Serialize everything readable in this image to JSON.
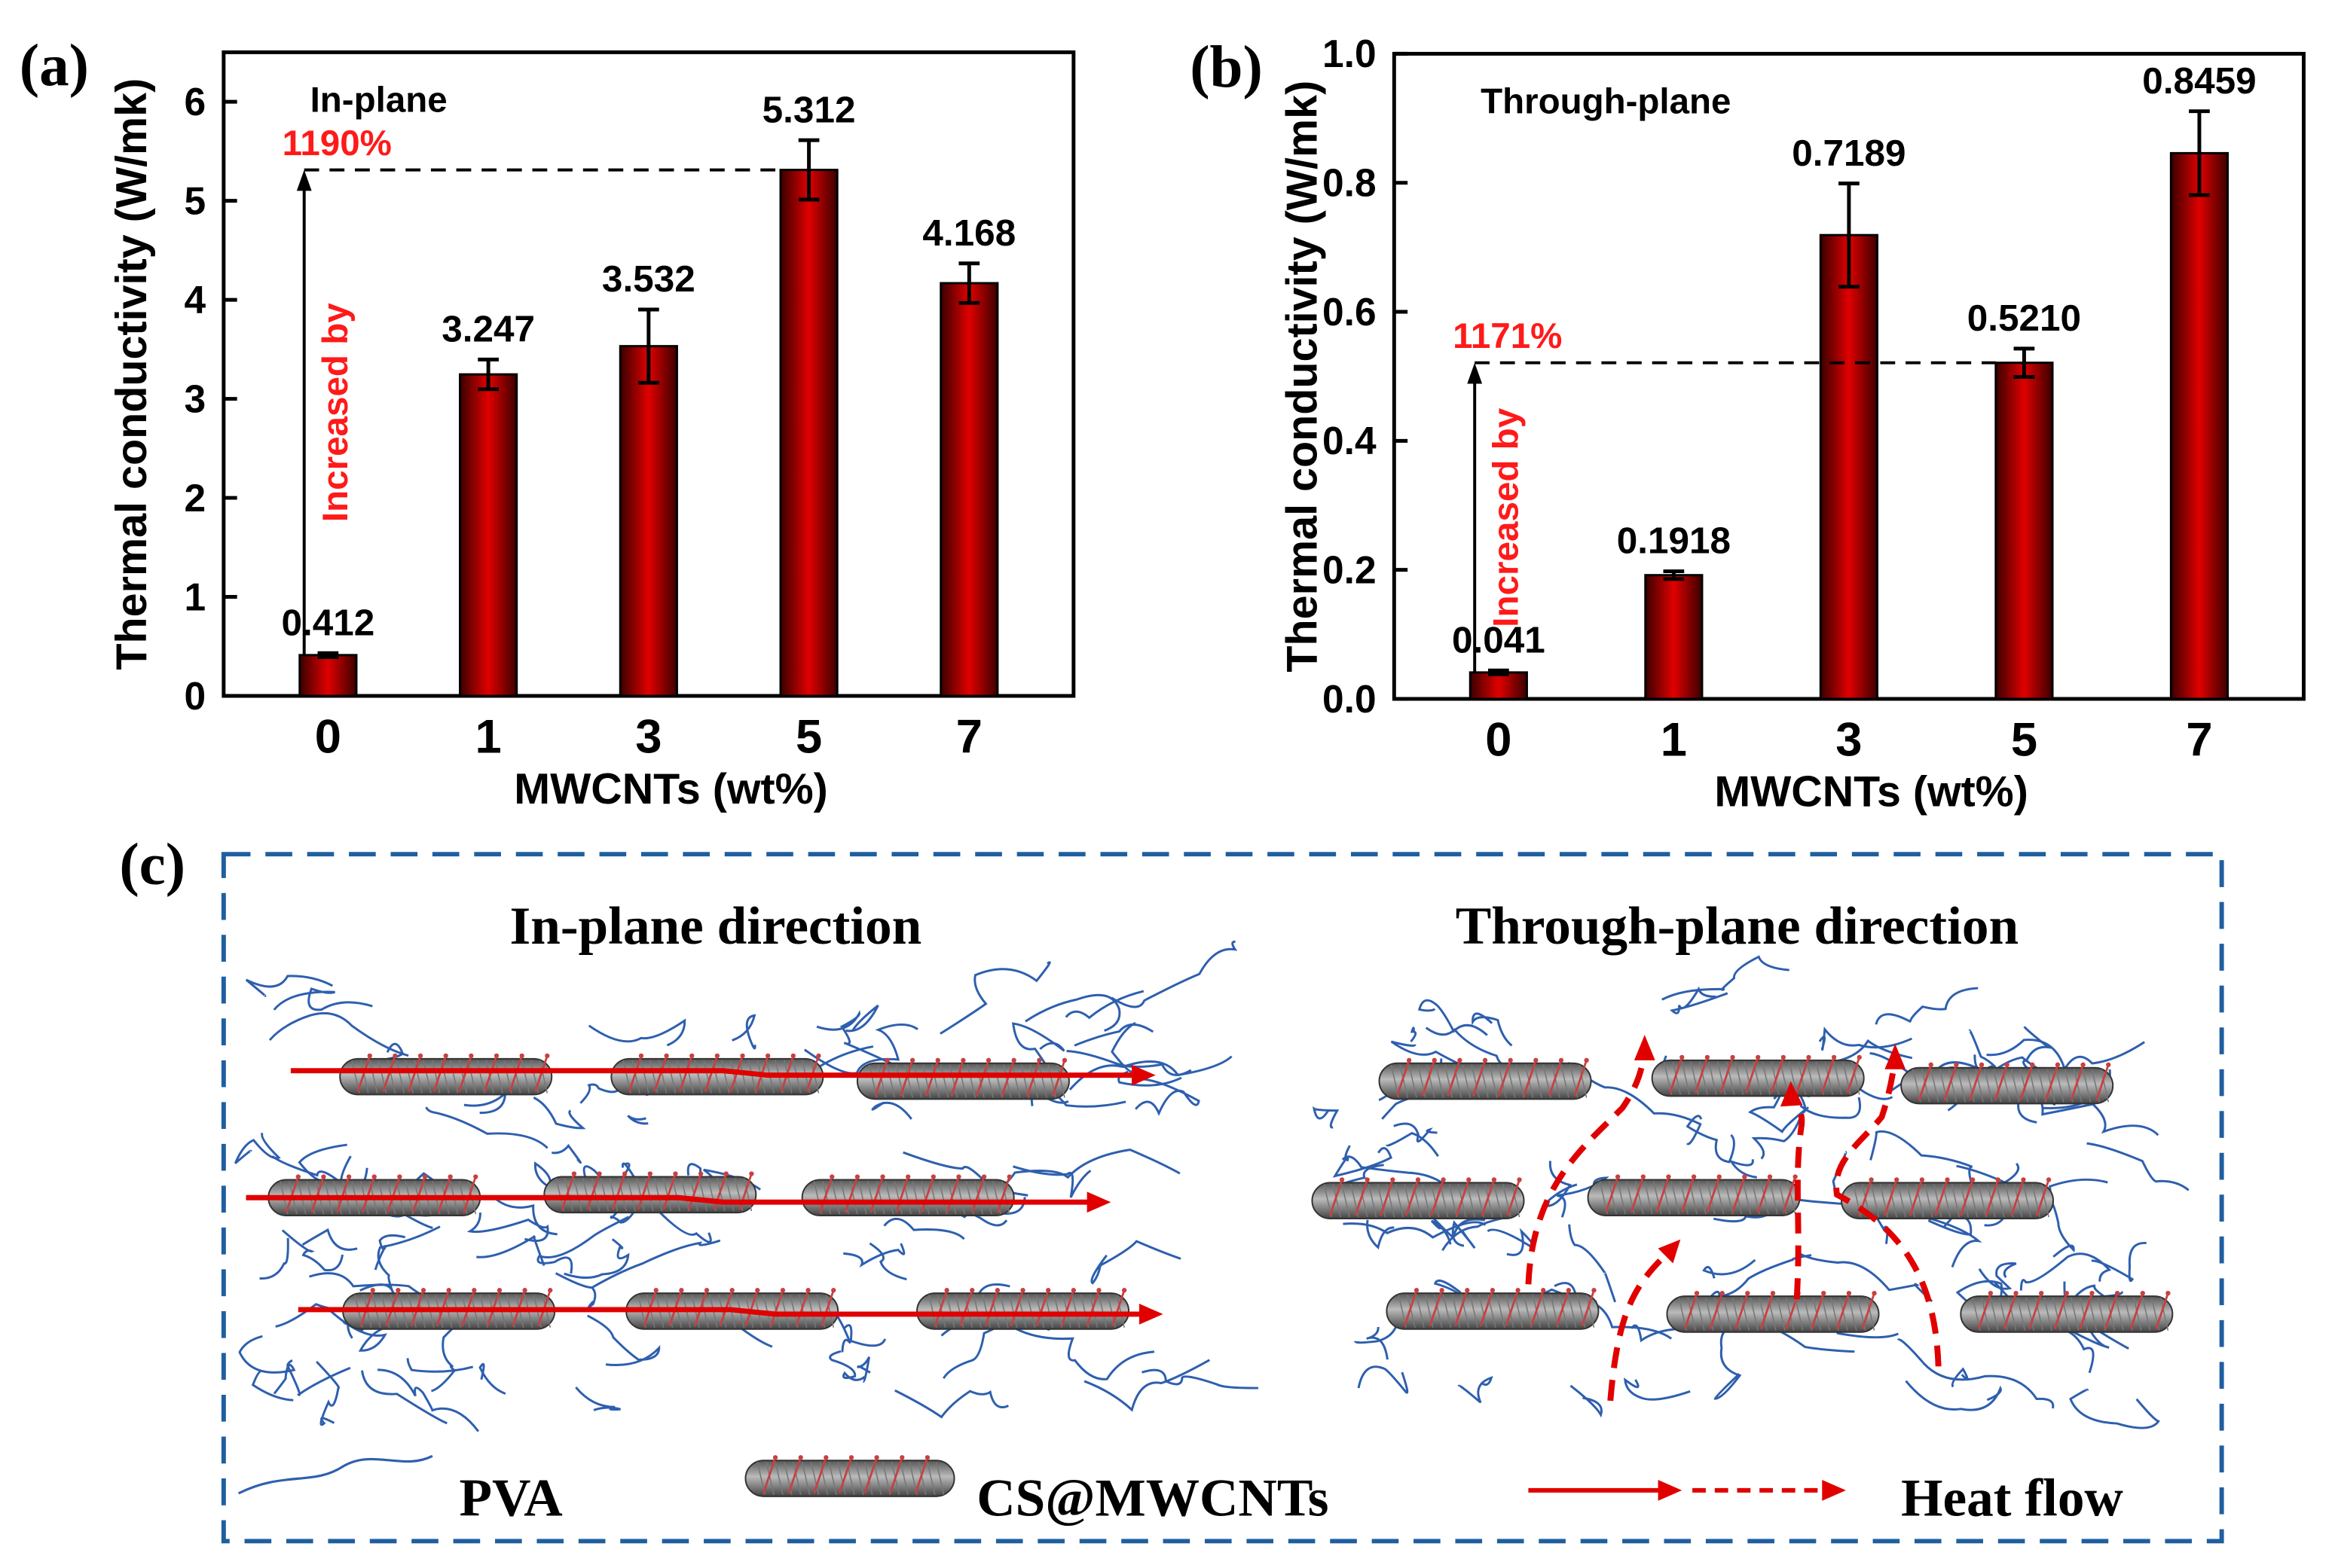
{
  "chart_data": [
    {
      "type": "bar",
      "panel_label": "(a)",
      "annotation": "In-plane",
      "ylabel": "Thermal conductivity (W/mk)",
      "xlabel": "MWCNTs (wt%)",
      "categories": [
        "0",
        "1",
        "3",
        "5",
        "7"
      ],
      "values": [
        0.412,
        3.247,
        3.532,
        5.312,
        4.168
      ],
      "value_labels": [
        "0.412",
        "3.247",
        "3.532",
        "5.312",
        "4.168"
      ],
      "errors": [
        0.02,
        0.15,
        0.37,
        0.3,
        0.2
      ],
      "color": "#e00000",
      "ylim": [
        0,
        6.5
      ],
      "yticks": [
        0,
        1,
        2,
        3,
        4,
        5,
        6
      ],
      "increase_label": "1190%",
      "increase_text": "Increased by",
      "reference_category": "5"
    },
    {
      "type": "bar",
      "panel_label": "(b)",
      "annotation": "Through-plane",
      "ylabel": "Thermal conductivity (W/mk)",
      "xlabel": "MWCNTs (wt%)",
      "categories": [
        "0",
        "1",
        "3",
        "5",
        "7"
      ],
      "values": [
        0.041,
        0.1918,
        0.7189,
        0.521,
        0.8459
      ],
      "value_labels": [
        "0.041",
        "0.1918",
        "0.7189",
        "0.5210",
        "0.8459"
      ],
      "errors": [
        0.003,
        0.006,
        0.08,
        0.022,
        0.065
      ],
      "color": "#e00000",
      "ylim": [
        0,
        1
      ],
      "yticks": [
        {
          "value": 0,
          "label": "0.0"
        },
        0.2,
        0.4,
        0.6,
        0.8,
        {
          "value": 1,
          "label": "1.0"
        }
      ],
      "increase_label": "1171%",
      "increase_text": "Increased by",
      "reference_category": "5"
    }
  ],
  "diagram": {
    "panel_label": "(c)",
    "left_title": "In-plane direction",
    "right_title": "Through-plane direction",
    "legend": [
      "PVA",
      "CS@MWCNTs",
      "Heat flow"
    ]
  }
}
